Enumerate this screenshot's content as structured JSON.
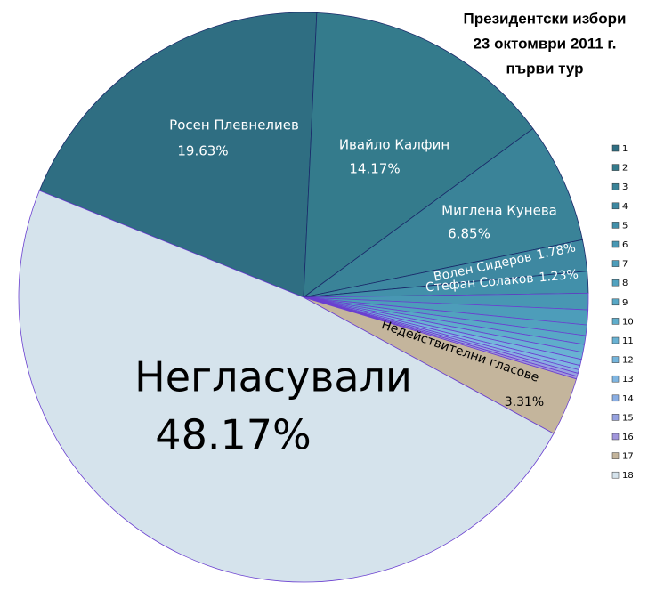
{
  "chart_data": {
    "type": "pie",
    "title": [
      "Президентски избори",
      "23 октомври 2011 г.",
      "първи тур"
    ],
    "categories": [
      "1",
      "2",
      "3",
      "4",
      "5",
      "6",
      "7",
      "8",
      "9",
      "10",
      "11",
      "12",
      "13",
      "14",
      "15",
      "16",
      "17",
      "18"
    ],
    "slice_labels": [
      "Росен Плевнелиев",
      "Ивайло Калфин",
      "Миглена Кунева",
      "Волен Сидеров",
      "Стефан Солаков",
      null,
      null,
      null,
      null,
      null,
      null,
      null,
      null,
      null,
      null,
      null,
      "Недействителни гласове",
      "Негласували"
    ],
    "values": [
      19.63,
      14.17,
      6.85,
      1.78,
      1.23,
      0.93,
      0.85,
      0.6,
      0.5,
      0.45,
      0.4,
      0.35,
      0.25,
      0.2,
      0.18,
      0.15,
      3.31,
      48.17
    ],
    "value_labels": [
      "19.63%",
      "14.17%",
      "6.85%",
      "1.78%",
      "1.23%",
      null,
      null,
      null,
      null,
      null,
      null,
      null,
      null,
      null,
      null,
      null,
      "3.31%",
      "48.17%"
    ],
    "colors": [
      "#2f6e82",
      "#347b8c",
      "#3a8398",
      "#3e88a1",
      "#4290aa",
      "#4897b3",
      "#4d9dba",
      "#52a2bf",
      "#58a8c6",
      "#5fadcb",
      "#69b2d3",
      "#74b5dc",
      "#80b6e2",
      "#8aaee3",
      "#96a2e0",
      "#a196dc",
      "#c4b59c",
      "#d5e3ec"
    ],
    "legend": "right"
  }
}
